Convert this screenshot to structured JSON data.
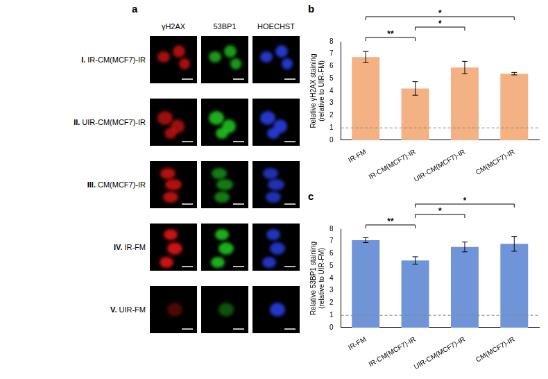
{
  "panel_a": {
    "letter": "a",
    "columns": [
      "γH2AX",
      "53BP1",
      "HOECHST"
    ],
    "rows": [
      {
        "numeral": "I.",
        "label": "IR-CM(MCF7)-IR"
      },
      {
        "numeral": "II.",
        "label": "UIR-CM(MCF7)-IR"
      },
      {
        "numeral": "III.",
        "label": "CM(MCF7)-IR"
      },
      {
        "numeral": "IV.",
        "label": "IR-FM"
      },
      {
        "numeral": "V.",
        "label": "UIR-FM"
      }
    ]
  },
  "chart_data": [
    {
      "panel": "b",
      "type": "bar",
      "categories": [
        "IR-FM",
        "IR-CM(MCF7)-IR",
        "UIR-CM(MCF7)-IR",
        "CM(MCF7)-IR"
      ],
      "values": [
        6.75,
        4.2,
        5.9,
        5.4
      ],
      "errors": [
        0.45,
        0.55,
        0.5,
        0.1
      ],
      "color": "#F4B183",
      "y_label": "Relative γH2AX staining (relative to UIR-FM)",
      "ylim": [
        0,
        8
      ],
      "yticks": [
        0,
        1,
        2,
        3,
        4,
        5,
        6,
        7,
        8
      ],
      "grid": false,
      "reference_line": 1,
      "comparisons": [
        {
          "from": 0,
          "to": 1,
          "label": "**"
        },
        {
          "from": 1,
          "to": 2,
          "label": "*"
        },
        {
          "from": 0,
          "to": 3,
          "label": "*"
        }
      ]
    },
    {
      "panel": "c",
      "type": "bar",
      "categories": [
        "IR-FM",
        "IR-CM(MCF7)-IR",
        "UIR-CM(MCF7)-IR",
        "CM(MCF7)-IR"
      ],
      "values": [
        7.1,
        5.45,
        6.55,
        6.8
      ],
      "errors": [
        0.2,
        0.3,
        0.4,
        0.6
      ],
      "color": "#7094D8",
      "y_label": "Relative 53BP1 staining (relative to UIR-FM)",
      "ylim": [
        0,
        8
      ],
      "yticks": [
        0,
        1,
        2,
        3,
        4,
        5,
        6,
        7,
        8
      ],
      "grid": false,
      "reference_line": 1,
      "comparisons": [
        {
          "from": 0,
          "to": 1,
          "label": "**"
        },
        {
          "from": 1,
          "to": 2,
          "label": "*"
        },
        {
          "from": 1,
          "to": 3,
          "label": "*"
        }
      ]
    }
  ]
}
